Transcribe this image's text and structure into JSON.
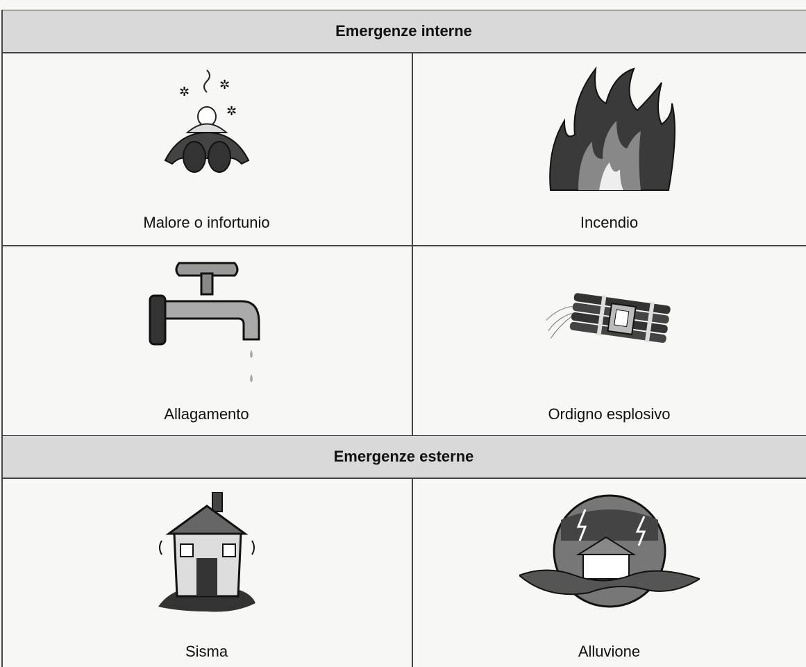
{
  "sections": [
    {
      "title": "Emergenze interne",
      "items": [
        "Malore o infortunio",
        "Incendio",
        "Allagamento",
        "Ordigno esplosivo"
      ]
    },
    {
      "title": "Emergenze esterne",
      "items": [
        "Sisma",
        "Alluvione"
      ]
    }
  ]
}
